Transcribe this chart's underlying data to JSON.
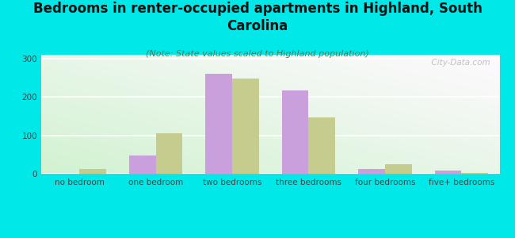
{
  "title": "Bedrooms in renter-occupied apartments in Highland, South\nCarolina",
  "subtitle": "(Note: State values scaled to Highland population)",
  "categories": [
    "no bedroom",
    "one bedroom",
    "two bedrooms",
    "three bedrooms",
    "four bedrooms",
    "five+ bedrooms"
  ],
  "highland_values": [
    0,
    47,
    260,
    218,
    12,
    8
  ],
  "sc_values": [
    12,
    105,
    248,
    147,
    25,
    3
  ],
  "highland_color": "#c9a0dc",
  "sc_color": "#c5cc8e",
  "background_color": "#00e8e8",
  "ylim": [
    0,
    310
  ],
  "yticks": [
    0,
    100,
    200,
    300
  ],
  "bar_width": 0.35,
  "title_fontsize": 12,
  "subtitle_fontsize": 8,
  "tick_fontsize": 7.5,
  "legend_fontsize": 9,
  "watermark": "  City-Data.com"
}
